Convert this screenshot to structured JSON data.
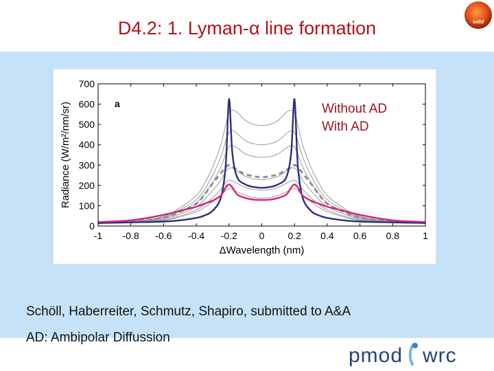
{
  "slide": {
    "title": "D4.2: 1. Lyman-α line formation",
    "logo_text": "solid",
    "legend": {
      "without_ad": "Without AD",
      "with_ad": "With AD"
    },
    "citation": "Schöll, Haberreiter, Schmutz, Shapiro, submitted to A&A",
    "ad_note": "AD: Ambipolar Diffussion",
    "footer_logo": {
      "left": "pmod",
      "right": "wrc"
    }
  },
  "colors": {
    "title": "#b5121b",
    "panel": "#c6e2f8",
    "without_ad": "#2b2f7e",
    "with_ad": "#d4247a",
    "thin": "#9a9a9a",
    "dashed": "#8f8f8f"
  },
  "chart_data": {
    "type": "line",
    "panel_label": "a",
    "xlabel": "ΔWavelength (nm)",
    "ylabel": "Radiance (W/m²/nm/sr)",
    "xlim": [
      -1,
      1
    ],
    "ylim": [
      0,
      700
    ],
    "xticks": [
      "-1",
      "-0.8",
      "-0.6",
      "-0.4",
      "-0.2",
      "0",
      "0.2",
      "0.4",
      "0.6",
      "0.8",
      "1"
    ],
    "yticks": [
      "0",
      "100",
      "200",
      "300",
      "400",
      "500",
      "600",
      "700"
    ],
    "x": [
      -1.0,
      -0.8,
      -0.6,
      -0.5,
      -0.4,
      -0.35,
      -0.3,
      -0.25,
      -0.22,
      -0.2,
      -0.18,
      -0.15,
      -0.1,
      -0.05,
      0.0,
      0.05,
      0.1,
      0.15,
      0.18,
      0.2,
      0.22,
      0.25,
      0.3,
      0.35,
      0.4,
      0.5,
      0.6,
      0.8,
      1.0
    ],
    "series": [
      {
        "name": "Without AD",
        "style": "bold",
        "values": [
          15,
          18,
          22,
          28,
          40,
          52,
          75,
          140,
          300,
          625,
          360,
          240,
          205,
          192,
          188,
          192,
          205,
          240,
          360,
          625,
          300,
          140,
          75,
          52,
          40,
          28,
          22,
          18,
          15
        ]
      },
      {
        "name": "With AD",
        "style": "bold",
        "values": [
          20,
          28,
          55,
          75,
          95,
          110,
          125,
          150,
          190,
          205,
          190,
          155,
          138,
          130,
          128,
          130,
          138,
          155,
          190,
          205,
          190,
          150,
          125,
          110,
          95,
          75,
          55,
          28,
          20
        ]
      },
      {
        "name": "",
        "style": "dashed",
        "values": [
          15,
          22,
          42,
          70,
          110,
          155,
          210,
          260,
          290,
          300,
          295,
          275,
          255,
          245,
          240,
          245,
          255,
          275,
          295,
          300,
          290,
          260,
          210,
          155,
          110,
          70,
          42,
          22,
          15
        ]
      },
      {
        "name": "",
        "style": "thin",
        "values": [
          15,
          22,
          48,
          90,
          150,
          210,
          290,
          400,
          500,
          560,
          570,
          560,
          520,
          500,
          495,
          500,
          520,
          560,
          570,
          560,
          500,
          400,
          290,
          210,
          150,
          90,
          48,
          22,
          15
        ]
      },
      {
        "name": "",
        "style": "thin",
        "values": [
          15,
          21,
          44,
          80,
          130,
          180,
          250,
          340,
          420,
          460,
          470,
          455,
          420,
          405,
          400,
          405,
          420,
          455,
          470,
          460,
          420,
          340,
          250,
          180,
          130,
          80,
          44,
          21,
          15
        ]
      },
      {
        "name": "",
        "style": "thin",
        "values": [
          15,
          20,
          40,
          72,
          115,
          160,
          215,
          290,
          355,
          390,
          395,
          385,
          355,
          342,
          338,
          342,
          355,
          385,
          395,
          390,
          355,
          290,
          215,
          160,
          115,
          72,
          40,
          20,
          15
        ]
      },
      {
        "name": "",
        "style": "thin",
        "values": [
          14,
          18,
          35,
          60,
          95,
          130,
          175,
          225,
          270,
          285,
          285,
          270,
          245,
          232,
          228,
          232,
          245,
          270,
          285,
          285,
          270,
          225,
          175,
          130,
          95,
          60,
          35,
          18,
          14
        ]
      },
      {
        "name": "",
        "style": "thin",
        "values": [
          14,
          17,
          30,
          50,
          80,
          105,
          140,
          180,
          215,
          225,
          222,
          210,
          190,
          180,
          176,
          180,
          190,
          210,
          222,
          225,
          215,
          180,
          140,
          105,
          80,
          50,
          30,
          17,
          14
        ]
      },
      {
        "name": "",
        "style": "thin",
        "values": [
          13,
          16,
          27,
          45,
          70,
          92,
          120,
          150,
          175,
          185,
          180,
          168,
          150,
          140,
          137,
          140,
          150,
          168,
          180,
          185,
          175,
          150,
          120,
          92,
          70,
          45,
          27,
          16,
          13
        ]
      }
    ]
  }
}
